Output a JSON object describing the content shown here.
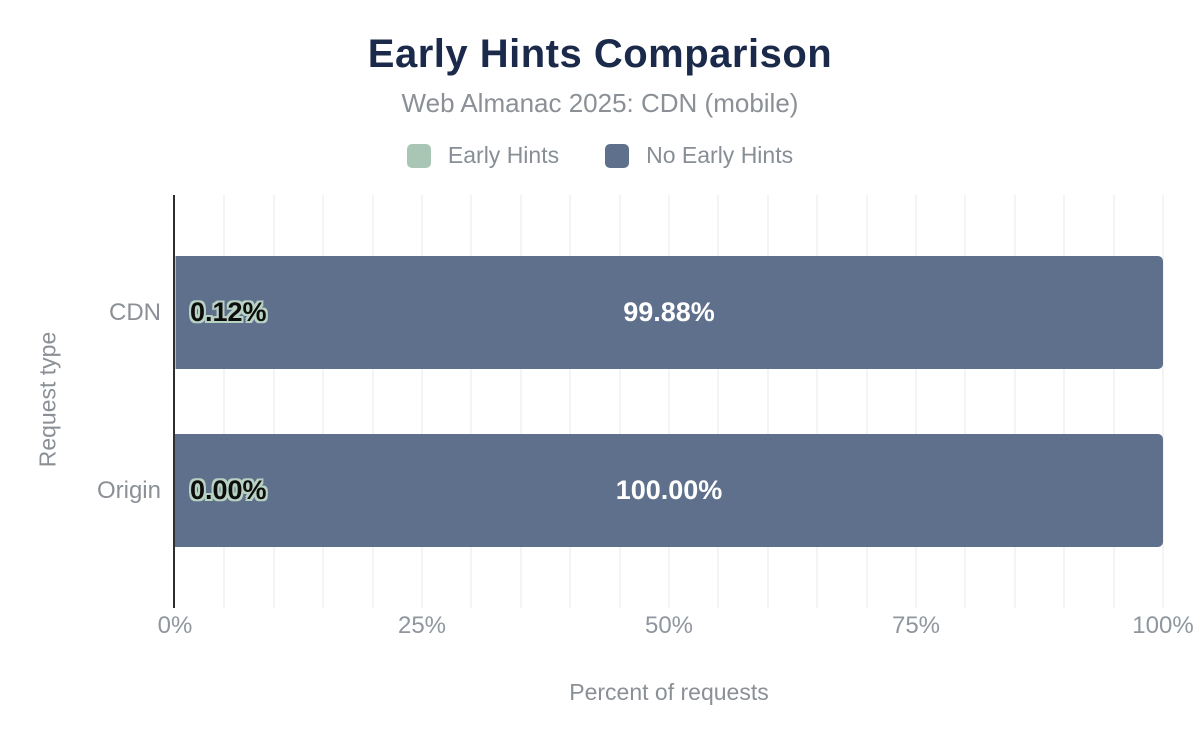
{
  "title": "Early Hints Comparison",
  "subtitle": "Web Almanac 2025: CDN (mobile)",
  "legend": [
    {
      "label": "Early Hints",
      "color": "#a9c6b4"
    },
    {
      "label": "No Early Hints",
      "color": "#5f708c"
    }
  ],
  "colors": {
    "title": "#1b2a4a",
    "early_hints": "#a9c6b4",
    "no_early_hints": "#5f708c",
    "label_halo": "#b7d1c2",
    "axis_line": "#2e2e2e",
    "gridline": "#f3f4f6",
    "muted_text": "#8b9096"
  },
  "chart_data": {
    "type": "bar",
    "orientation": "horizontal",
    "stacked": true,
    "title": "Early Hints Comparison",
    "subtitle": "Web Almanac 2025: CDN (mobile)",
    "categories": [
      "CDN",
      "Origin"
    ],
    "series": [
      {
        "name": "Early Hints",
        "color": "#a9c6b4",
        "values": [
          0.12,
          0.0
        ],
        "labels": [
          "0.12%",
          "0.00%"
        ]
      },
      {
        "name": "No Early Hints",
        "color": "#5f708c",
        "values": [
          99.88,
          100.0
        ],
        "labels": [
          "99.88%",
          "100.00%"
        ]
      }
    ],
    "xlabel": "Percent of requests",
    "ylabel": "Request type",
    "xlim": [
      0,
      100
    ],
    "xticks": [
      "0%",
      "25%",
      "50%",
      "75%",
      "100%"
    ],
    "grid": "vertical minor gridlines every 5%",
    "legend_position": "top center"
  }
}
